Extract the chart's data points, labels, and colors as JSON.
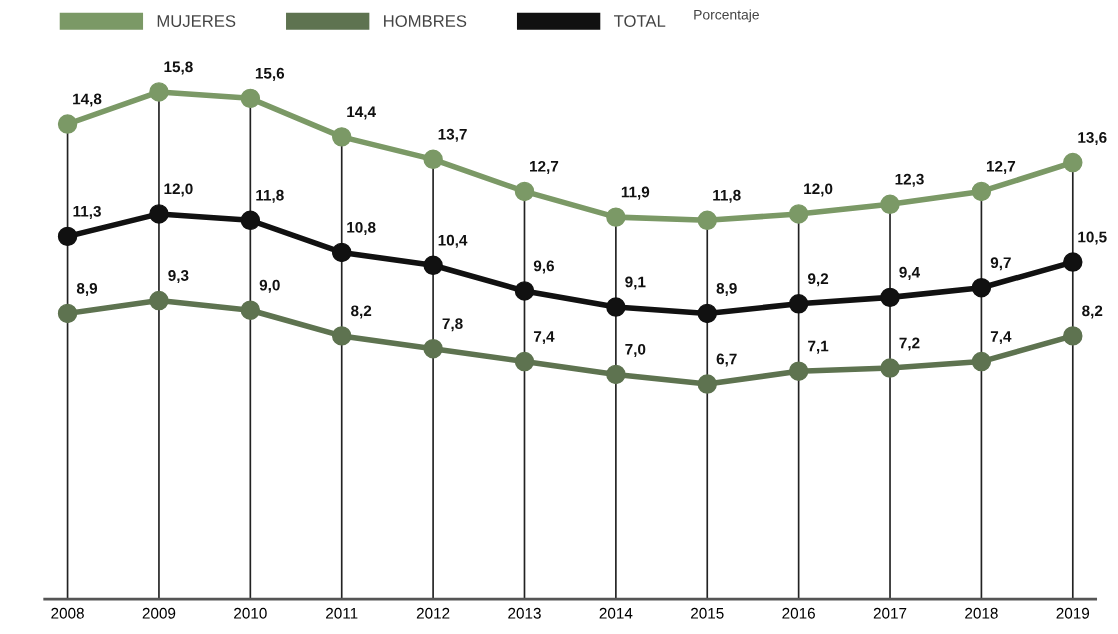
{
  "chart_data": {
    "type": "line",
    "subtitle": "Porcentaje",
    "categories": [
      "2008",
      "2009",
      "2010",
      "2011",
      "2012",
      "2013",
      "2014",
      "2015",
      "2016",
      "2017",
      "2018",
      "2019"
    ],
    "series": [
      {
        "name": "MUJERES",
        "color": "#7b9966",
        "values": [
          14.8,
          15.8,
          15.6,
          14.4,
          13.7,
          12.7,
          11.9,
          11.8,
          12.0,
          12.3,
          12.7,
          13.6
        ],
        "value_labels": [
          "14,8",
          "15,8",
          "15,6",
          "14,4",
          "13,7",
          "12,7",
          "11,9",
          "11,8",
          "12,0",
          "12,3",
          "12,7",
          "13,6"
        ]
      },
      {
        "name": "HOMBRES",
        "color": "#5e7350",
        "values": [
          8.9,
          9.3,
          9.0,
          8.2,
          7.8,
          7.4,
          7.0,
          6.7,
          7.1,
          7.2,
          7.4,
          8.2
        ],
        "value_labels": [
          "8,9",
          "9,3",
          "9,0",
          "8,2",
          "7,8",
          "7,4",
          "7,0",
          "6,7",
          "7,1",
          "7,2",
          "7,4",
          "8,2"
        ]
      },
      {
        "name": "TOTAL",
        "color": "#111111",
        "values": [
          11.3,
          12.0,
          11.8,
          10.8,
          10.4,
          9.6,
          9.1,
          8.9,
          9.2,
          9.4,
          9.7,
          10.5
        ],
        "value_labels": [
          "11,3",
          "12,0",
          "11,8",
          "10,8",
          "10,4",
          "9,6",
          "9,1",
          "8,9",
          "9,2",
          "9,4",
          "9,7",
          "10,5"
        ]
      }
    ],
    "grid": "x",
    "legend": "top left",
    "marker": "circle",
    "line_style": "solid"
  }
}
